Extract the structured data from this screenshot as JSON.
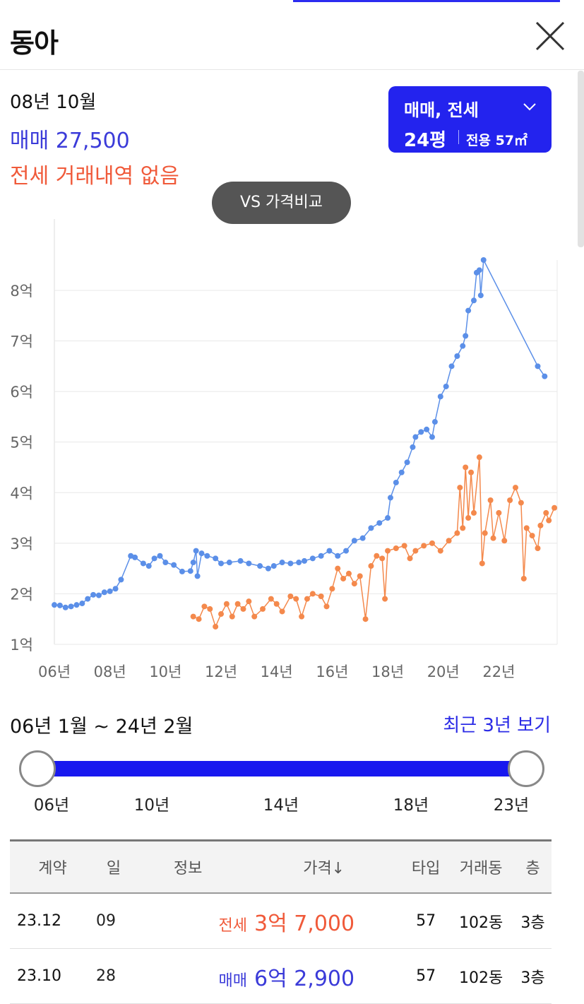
{
  "header": {
    "title": "동아"
  },
  "summary": {
    "date": "08년 10월",
    "sale": "매매 27,500",
    "jeonse": "전세 거래내역 없음"
  },
  "type_selector": {
    "line1": "매매, 전세",
    "line2": "24평",
    "line3": "전용 57㎡"
  },
  "compare_button": "VS 가격비교",
  "chart_data": {
    "type": "line",
    "y_tick_labels": [
      "1억",
      "2억",
      "3억",
      "4억",
      "5억",
      "6억",
      "7억",
      "8억"
    ],
    "x_tick_labels": [
      "06년",
      "08년",
      "10년",
      "12년",
      "14년",
      "16년",
      "18년",
      "20년",
      "22년"
    ],
    "ylim": [
      1,
      8.6
    ],
    "xlim": [
      2006,
      2024.1
    ],
    "grid": true,
    "series": [
      {
        "color": "#5b8fe8",
        "points": [
          [
            2006.0,
            1.78
          ],
          [
            2006.2,
            1.77
          ],
          [
            2006.4,
            1.73
          ],
          [
            2006.6,
            1.75
          ],
          [
            2006.8,
            1.78
          ],
          [
            2007.0,
            1.81
          ],
          [
            2007.2,
            1.9
          ],
          [
            2007.4,
            1.98
          ],
          [
            2007.6,
            1.97
          ],
          [
            2007.8,
            2.03
          ],
          [
            2008.0,
            2.05
          ],
          [
            2008.2,
            2.1
          ],
          [
            2008.4,
            2.28
          ],
          [
            2008.75,
            2.75
          ],
          [
            2008.9,
            2.72
          ],
          [
            2009.2,
            2.6
          ],
          [
            2009.4,
            2.55
          ],
          [
            2009.6,
            2.7
          ],
          [
            2009.8,
            2.75
          ],
          [
            2010.0,
            2.62
          ],
          [
            2010.3,
            2.57
          ],
          [
            2010.6,
            2.44
          ],
          [
            2010.9,
            2.45
          ],
          [
            2011.0,
            2.62
          ],
          [
            2011.1,
            2.85
          ],
          [
            2011.15,
            2.35
          ],
          [
            2011.3,
            2.8
          ],
          [
            2011.5,
            2.75
          ],
          [
            2011.8,
            2.7
          ],
          [
            2012.0,
            2.6
          ],
          [
            2012.3,
            2.62
          ],
          [
            2012.7,
            2.65
          ],
          [
            2013.0,
            2.6
          ],
          [
            2013.4,
            2.55
          ],
          [
            2013.7,
            2.5
          ],
          [
            2013.9,
            2.55
          ],
          [
            2014.2,
            2.62
          ],
          [
            2014.5,
            2.6
          ],
          [
            2014.8,
            2.62
          ],
          [
            2015.0,
            2.65
          ],
          [
            2015.3,
            2.7
          ],
          [
            2015.6,
            2.75
          ],
          [
            2015.9,
            2.85
          ],
          [
            2016.2,
            2.75
          ],
          [
            2016.5,
            2.85
          ],
          [
            2016.8,
            3.05
          ],
          [
            2017.1,
            3.1
          ],
          [
            2017.4,
            3.3
          ],
          [
            2017.7,
            3.4
          ],
          [
            2018.0,
            3.5
          ],
          [
            2018.1,
            3.9
          ],
          [
            2018.3,
            4.2
          ],
          [
            2018.5,
            4.4
          ],
          [
            2018.7,
            4.6
          ],
          [
            2018.9,
            4.9
          ],
          [
            2019.0,
            5.1
          ],
          [
            2019.2,
            5.2
          ],
          [
            2019.4,
            5.25
          ],
          [
            2019.6,
            5.1
          ],
          [
            2019.7,
            5.4
          ],
          [
            2019.9,
            5.9
          ],
          [
            2020.1,
            6.1
          ],
          [
            2020.3,
            6.5
          ],
          [
            2020.5,
            6.7
          ],
          [
            2020.7,
            6.9
          ],
          [
            2020.8,
            7.1
          ],
          [
            2020.9,
            7.6
          ],
          [
            2021.1,
            7.8
          ],
          [
            2021.2,
            8.35
          ],
          [
            2021.3,
            8.4
          ],
          [
            2021.35,
            7.9
          ],
          [
            2021.45,
            8.6
          ],
          [
            2023.4,
            6.5
          ],
          [
            2023.65,
            6.3
          ]
        ]
      },
      {
        "color": "#f4894c",
        "points": [
          [
            2011.0,
            1.55
          ],
          [
            2011.2,
            1.5
          ],
          [
            2011.4,
            1.75
          ],
          [
            2011.6,
            1.7
          ],
          [
            2011.8,
            1.35
          ],
          [
            2012.0,
            1.6
          ],
          [
            2012.2,
            1.8
          ],
          [
            2012.4,
            1.55
          ],
          [
            2012.6,
            1.8
          ],
          [
            2012.8,
            1.7
          ],
          [
            2013.0,
            1.85
          ],
          [
            2013.2,
            1.55
          ],
          [
            2013.5,
            1.7
          ],
          [
            2013.8,
            1.9
          ],
          [
            2014.0,
            1.8
          ],
          [
            2014.2,
            1.65
          ],
          [
            2014.5,
            1.95
          ],
          [
            2014.7,
            1.9
          ],
          [
            2014.9,
            1.55
          ],
          [
            2015.1,
            1.9
          ],
          [
            2015.3,
            2.0
          ],
          [
            2015.6,
            1.95
          ],
          [
            2015.8,
            1.75
          ],
          [
            2016.0,
            2.1
          ],
          [
            2016.2,
            2.5
          ],
          [
            2016.4,
            2.3
          ],
          [
            2016.6,
            2.4
          ],
          [
            2016.8,
            2.2
          ],
          [
            2017.0,
            2.35
          ],
          [
            2017.2,
            1.5
          ],
          [
            2017.4,
            2.55
          ],
          [
            2017.6,
            2.75
          ],
          [
            2017.8,
            2.7
          ],
          [
            2017.9,
            1.9
          ],
          [
            2018.0,
            2.85
          ],
          [
            2018.3,
            2.9
          ],
          [
            2018.6,
            2.95
          ],
          [
            2018.8,
            2.7
          ],
          [
            2019.0,
            2.85
          ],
          [
            2019.3,
            2.95
          ],
          [
            2019.6,
            3.0
          ],
          [
            2019.9,
            2.85
          ],
          [
            2020.2,
            3.05
          ],
          [
            2020.5,
            3.2
          ],
          [
            2020.6,
            4.1
          ],
          [
            2020.7,
            3.3
          ],
          [
            2020.8,
            4.5
          ],
          [
            2020.9,
            3.5
          ],
          [
            2021.0,
            4.4
          ],
          [
            2021.1,
            3.6
          ],
          [
            2021.3,
            4.7
          ],
          [
            2021.4,
            2.6
          ],
          [
            2021.5,
            3.2
          ],
          [
            2021.7,
            3.85
          ],
          [
            2021.8,
            3.1
          ],
          [
            2022.0,
            3.6
          ],
          [
            2022.2,
            3.05
          ],
          [
            2022.4,
            3.85
          ],
          [
            2022.6,
            4.1
          ],
          [
            2022.8,
            3.8
          ],
          [
            2022.9,
            2.3
          ],
          [
            2023.0,
            3.3
          ],
          [
            2023.2,
            3.15
          ],
          [
            2023.4,
            2.9
          ],
          [
            2023.5,
            3.35
          ],
          [
            2023.7,
            3.6
          ],
          [
            2023.8,
            3.45
          ],
          [
            2024.0,
            3.7
          ]
        ]
      }
    ]
  },
  "range": {
    "label": "06년 1월 ~ 24년 2월",
    "recent_link": "최근 3년 보기",
    "ticks": [
      {
        "label": "06년",
        "x": 73
      },
      {
        "label": "10년",
        "x": 215
      },
      {
        "label": "14년",
        "x": 398
      },
      {
        "label": "18년",
        "x": 582
      },
      {
        "label": "23년",
        "x": 724
      }
    ]
  },
  "table": {
    "headers": [
      "계약",
      "일",
      "정보",
      "가격↓",
      "타입",
      "거래동",
      "층"
    ],
    "rows": [
      {
        "date": "23.12",
        "day": "09",
        "ptype": "전세",
        "price": "3억 7,000",
        "type": "57",
        "dong": "102동",
        "floor": "3층",
        "color": "#f05a3a"
      },
      {
        "date": "23.10",
        "day": "28",
        "ptype": "매매",
        "price": "6억 2,900",
        "type": "57",
        "dong": "102동",
        "floor": "3층",
        "color": "#3b3bd9"
      }
    ]
  }
}
